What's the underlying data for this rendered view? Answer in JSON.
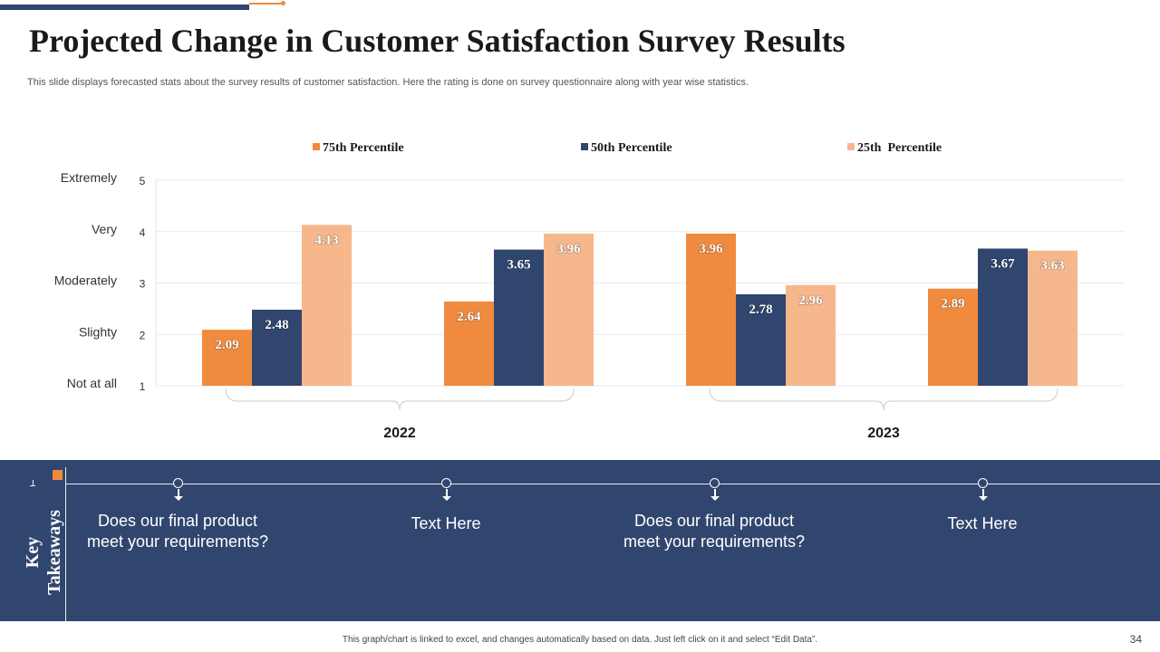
{
  "slide": {
    "title": "Projected Change in Customer Satisfaction Survey Results",
    "subtitle": "This slide displays forecasted stats about the survey results of customer satisfaction. Here the rating is done on survey questionnaire along with year wise statistics.",
    "footer_note": "This graph/chart is linked to excel, and changes automatically based on data. Just left click on it and select “Edit Data”.",
    "page_number": "34"
  },
  "colors": {
    "accent_orange": "#f08a3e",
    "navy": "#31466f",
    "peach": "#f7b78d"
  },
  "chart_data": {
    "type": "bar",
    "title": "",
    "categories": [
      "",
      "",
      "",
      ""
    ],
    "groups": [
      {
        "label": "2022",
        "category_indices": [
          0,
          1
        ]
      },
      {
        "label": "2023",
        "category_indices": [
          2,
          3
        ]
      }
    ],
    "series": [
      {
        "name": "75th Percentile",
        "color": "#f08a3e",
        "values": [
          2.09,
          2.64,
          3.96,
          2.89
        ]
      },
      {
        "name": "50th Percentile",
        "color": "#31466f",
        "values": [
          2.48,
          3.65,
          2.78,
          3.67
        ]
      },
      {
        "name": "25th  Percentile",
        "color": "#f7b78d",
        "values": [
          4.13,
          3.96,
          2.96,
          3.63
        ]
      }
    ],
    "y_ticks": [
      1,
      2,
      3,
      4,
      5
    ],
    "y_tick_text": [
      "Not at all",
      "Slighty",
      "Moderately",
      "Very",
      "Extremely"
    ],
    "ylim": [
      1,
      5
    ],
    "xlabel": "",
    "ylabel": "",
    "legend_position": "top",
    "grid": true
  },
  "takeaways": {
    "label_line1": "Key",
    "label_line2": "Takeaways",
    "items": [
      {
        "text": "Does our final product meet your requirements?"
      },
      {
        "text": "Text Here"
      },
      {
        "text": "Does our final product meet your requirements?"
      },
      {
        "text": "Text Here"
      }
    ]
  }
}
